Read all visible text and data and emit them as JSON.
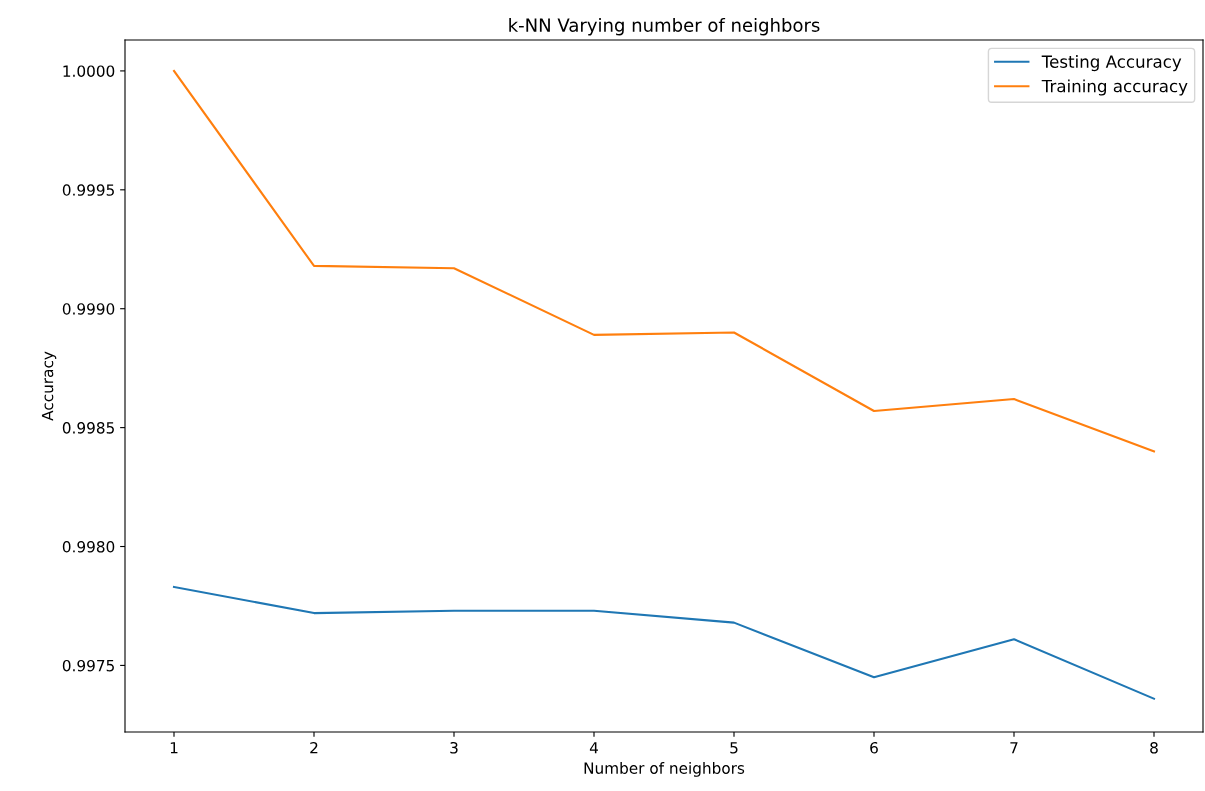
{
  "chart_data": {
    "type": "line",
    "title": "k-NN Varying number of neighbors",
    "xlabel": "Number of neighbors",
    "ylabel": "Accuracy",
    "x": [
      1,
      2,
      3,
      4,
      5,
      6,
      7,
      8
    ],
    "series": [
      {
        "name": "Testing Accuracy",
        "color": "#1f77b4",
        "values": [
          0.99783,
          0.99772,
          0.99773,
          0.99773,
          0.99768,
          0.99745,
          0.99761,
          0.99736
        ]
      },
      {
        "name": "Training accuracy",
        "color": "#ff7f0e",
        "values": [
          1.0,
          0.99918,
          0.99917,
          0.99889,
          0.9989,
          0.99857,
          0.99862,
          0.9984
        ]
      }
    ],
    "xlim": [
      0.65,
      8.35
    ],
    "xticks": [
      1,
      2,
      3,
      4,
      5,
      6,
      7,
      8
    ],
    "ylim": [
      0.99722,
      1.00013
    ],
    "yticks": [
      {
        "value": 0.9975,
        "label": "0.9975"
      },
      {
        "value": 0.998,
        "label": "0.9980"
      },
      {
        "value": 0.9985,
        "label": "0.9985"
      },
      {
        "value": 0.999,
        "label": "0.9990"
      },
      {
        "value": 0.9995,
        "label": "0.9995"
      },
      {
        "value": 1.0,
        "label": "1.0000"
      }
    ],
    "grid": false,
    "legend": "top right",
    "marker": "none",
    "line_style": "solid"
  }
}
